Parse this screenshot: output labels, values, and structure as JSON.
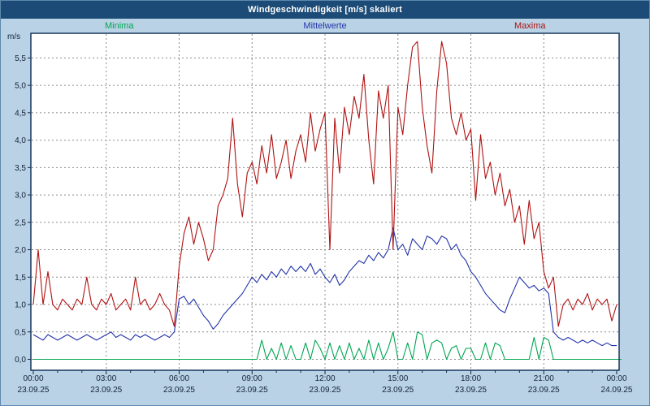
{
  "chart_data": {
    "type": "line",
    "title": "Windgeschwindigkeit [m/s] skaliert",
    "ylabel": "m/s",
    "xlabel": "",
    "grid": true,
    "legend_position": "top",
    "ylim": [
      -0.2,
      5.95
    ],
    "xlim_hours": [
      0,
      24
    ],
    "x_step_hours": 0.2,
    "x_ticks": [
      {
        "time": "00:00",
        "date": "23.09.25"
      },
      {
        "time": "03:00",
        "date": "23.09.25"
      },
      {
        "time": "06:00",
        "date": "23.09.25"
      },
      {
        "time": "09:00",
        "date": "23.09.25"
      },
      {
        "time": "12:00",
        "date": "23.09.25"
      },
      {
        "time": "15:00",
        "date": "23.09.25"
      },
      {
        "time": "18:00",
        "date": "23.09.25"
      },
      {
        "time": "21:00",
        "date": "23.09.25"
      },
      {
        "time": "00:00",
        "date": "24.09.25"
      }
    ],
    "y_ticks": [
      {
        "value": 0.0,
        "label": "0,0"
      },
      {
        "value": 0.5,
        "label": "0,5"
      },
      {
        "value": 1.0,
        "label": "1,0"
      },
      {
        "value": 1.5,
        "label": "1,5"
      },
      {
        "value": 2.0,
        "label": "2,0"
      },
      {
        "value": 2.5,
        "label": "2,5"
      },
      {
        "value": 3.0,
        "label": "3,0"
      },
      {
        "value": 3.5,
        "label": "3,5"
      },
      {
        "value": 4.0,
        "label": "4,0"
      },
      {
        "value": 4.5,
        "label": "4,5"
      },
      {
        "value": 5.0,
        "label": "5,0"
      },
      {
        "value": 5.5,
        "label": "5,5"
      }
    ],
    "series": [
      {
        "name": "Minima",
        "color": "#00a651",
        "values": [
          0,
          0,
          0,
          0,
          0,
          0,
          0,
          0,
          0,
          0,
          0,
          0,
          0,
          0,
          0,
          0,
          0,
          0,
          0,
          0,
          0,
          0,
          0,
          0,
          0,
          0,
          0,
          0,
          0,
          0,
          0,
          0,
          0,
          0,
          0,
          0,
          0,
          0,
          0,
          0,
          0,
          0,
          0,
          0,
          0,
          0,
          0,
          0.35,
          0,
          0.2,
          0,
          0.3,
          0,
          0.25,
          0,
          0,
          0.3,
          0,
          0.35,
          0.2,
          0,
          0.3,
          0,
          0.25,
          0,
          0.3,
          0,
          0.2,
          0,
          0.35,
          0,
          0.3,
          0,
          0.2,
          0.5,
          0,
          0,
          0.3,
          0,
          0.5,
          0.45,
          0,
          0.3,
          0.35,
          0.3,
          0,
          0.2,
          0.25,
          0,
          0.2,
          0.2,
          0,
          0,
          0.3,
          0,
          0.3,
          0.25,
          0,
          0,
          0,
          0,
          0,
          0,
          0.4,
          0,
          0.4,
          0.35,
          0,
          0,
          0,
          0,
          0,
          0,
          0,
          0,
          0,
          0,
          0,
          0,
          0,
          0,
          0
        ]
      },
      {
        "name": "Mittelwerte",
        "color": "#2234aa",
        "values": [
          0.45,
          0.4,
          0.35,
          0.45,
          0.4,
          0.35,
          0.4,
          0.45,
          0.4,
          0.35,
          0.4,
          0.45,
          0.4,
          0.35,
          0.4,
          0.45,
          0.5,
          0.4,
          0.45,
          0.4,
          0.35,
          0.45,
          0.4,
          0.45,
          0.4,
          0.35,
          0.4,
          0.45,
          0.4,
          0.5,
          1.1,
          1.15,
          1.0,
          1.1,
          0.95,
          0.8,
          0.7,
          0.55,
          0.65,
          0.8,
          0.9,
          1.0,
          1.1,
          1.2,
          1.35,
          1.5,
          1.4,
          1.55,
          1.45,
          1.6,
          1.5,
          1.65,
          1.55,
          1.7,
          1.6,
          1.7,
          1.6,
          1.75,
          1.55,
          1.65,
          1.5,
          1.4,
          1.55,
          1.35,
          1.45,
          1.6,
          1.7,
          1.8,
          1.75,
          1.9,
          1.8,
          1.95,
          1.85,
          2.0,
          2.4,
          2.0,
          2.1,
          1.9,
          2.2,
          2.1,
          2.0,
          2.25,
          2.2,
          2.1,
          2.25,
          2.2,
          2.0,
          2.1,
          1.9,
          1.8,
          1.6,
          1.5,
          1.35,
          1.2,
          1.1,
          1.0,
          0.9,
          0.85,
          1.1,
          1.3,
          1.5,
          1.4,
          1.3,
          1.35,
          1.25,
          1.3,
          1.2,
          0.5,
          0.4,
          0.35,
          0.4,
          0.35,
          0.3,
          0.35,
          0.3,
          0.35,
          0.3,
          0.25,
          0.3,
          0.25,
          0.25
        ]
      },
      {
        "name": "Maxima",
        "color": "#b01212",
        "values": [
          1.0,
          2.0,
          1.0,
          1.6,
          1.0,
          0.9,
          1.1,
          1.0,
          0.9,
          1.1,
          1.0,
          1.5,
          1.0,
          0.9,
          1.1,
          1.0,
          1.2,
          0.9,
          1.0,
          1.1,
          0.9,
          1.5,
          1.0,
          1.1,
          0.9,
          1.0,
          1.2,
          1.0,
          0.9,
          0.6,
          1.7,
          2.3,
          2.6,
          2.1,
          2.5,
          2.2,
          1.8,
          2.0,
          2.8,
          3.0,
          3.3,
          4.4,
          3.2,
          2.6,
          3.4,
          3.6,
          3.2,
          3.9,
          3.4,
          4.1,
          3.3,
          3.6,
          4.0,
          3.3,
          3.8,
          4.1,
          3.6,
          4.5,
          3.8,
          4.2,
          4.5,
          2.0,
          4.4,
          3.4,
          4.6,
          4.1,
          4.8,
          4.4,
          5.2,
          4.0,
          3.2,
          4.9,
          4.4,
          5.0,
          2.0,
          4.6,
          4.1,
          5.0,
          5.7,
          5.8,
          4.6,
          3.9,
          3.4,
          4.9,
          5.8,
          5.4,
          4.4,
          4.1,
          4.5,
          4.0,
          4.2,
          2.9,
          4.1,
          3.3,
          3.6,
          3.0,
          3.4,
          2.8,
          3.1,
          2.5,
          2.8,
          2.1,
          2.9,
          2.2,
          2.5,
          1.6,
          1.3,
          1.5,
          0.6,
          1.0,
          1.1,
          0.9,
          1.1,
          1.0,
          1.2,
          0.9,
          1.1,
          1.0,
          1.1,
          0.7,
          1.0
        ]
      }
    ]
  }
}
